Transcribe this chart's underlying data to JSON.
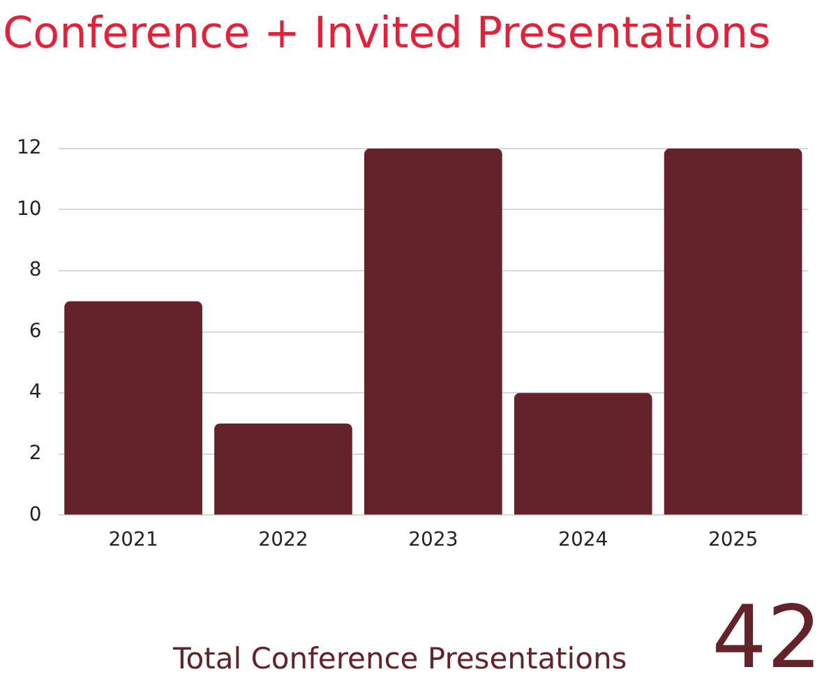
{
  "chart_data": {
    "type": "bar",
    "title": "Conference + Invited Presentations",
    "categories": [
      "2021",
      "2022",
      "2023",
      "2024",
      "2025"
    ],
    "values": [
      7,
      3,
      12,
      4,
      12
    ],
    "color": "#632329",
    "ylim": [
      0,
      12
    ],
    "yticks": [
      0,
      2,
      4,
      6,
      8,
      10,
      12
    ],
    "grid": "y",
    "annotations": [
      "Total Conference Presentations",
      "42"
    ]
  }
}
